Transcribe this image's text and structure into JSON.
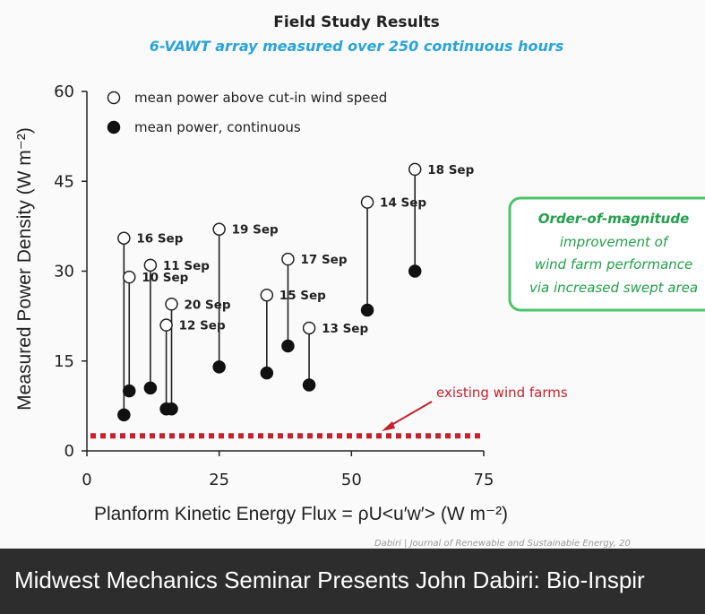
{
  "chart_data": {
    "type": "scatter",
    "title": "Field Study Results",
    "subtitle": "6-VAWT array measured over 250 continuous hours",
    "xlabel": "Planform Kinetic Energy Flux = ρU<u′w′> (W m⁻²)",
    "ylabel": "Measured Power Density (W m⁻²)",
    "xlim": [
      0,
      75
    ],
    "ylim": [
      0,
      60
    ],
    "xticks": [
      "0",
      "25",
      "50",
      "75"
    ],
    "yticks": [
      "0",
      "15",
      "30",
      "45",
      "60"
    ],
    "grid": false,
    "legend_position": "top-left",
    "series": [
      {
        "name": "mean power above cut-in wind speed",
        "marker": "open-circle"
      },
      {
        "name": "mean power, continuous",
        "marker": "filled-circle"
      }
    ],
    "points": [
      {
        "label": "16 Sep",
        "x": 7,
        "above_cut_in": 35.5,
        "continuous": 6
      },
      {
        "label": "10 Sep",
        "x": 8,
        "above_cut_in": 29,
        "continuous": 10
      },
      {
        "label": "11 Sep",
        "x": 12,
        "above_cut_in": 31,
        "continuous": 10.5
      },
      {
        "label": "20 Sep",
        "x": 16,
        "above_cut_in": 24.5,
        "continuous": 7
      },
      {
        "label": "12 Sep",
        "x": 15,
        "above_cut_in": 21,
        "continuous": 7
      },
      {
        "label": "19 Sep",
        "x": 25,
        "above_cut_in": 37,
        "continuous": 14
      },
      {
        "label": "15 Sep",
        "x": 34,
        "above_cut_in": 26,
        "continuous": 13
      },
      {
        "label": "17 Sep",
        "x": 38,
        "above_cut_in": 32,
        "continuous": 17.5
      },
      {
        "label": "13 Sep",
        "x": 42,
        "above_cut_in": 20.5,
        "continuous": 11
      },
      {
        "label": "14 Sep",
        "x": 53,
        "above_cut_in": 41.5,
        "continuous": 23.5
      },
      {
        "label": "18 Sep",
        "x": 62,
        "above_cut_in": 47,
        "continuous": 30
      }
    ],
    "reference_line": {
      "label": "existing wind farms",
      "y": 2.5,
      "x_range": [
        0,
        75
      ],
      "color": "#c8202c"
    },
    "callout": {
      "lines": [
        "Order-of-magnitude",
        "improvement of",
        "wind farm performance",
        "via increased swept area"
      ],
      "color": "#22a04a"
    },
    "citation": "Dabiri | Journal of Renewable and Sustainable Energy, 20"
  },
  "caption": {
    "text": "Midwest Mechanics Seminar Presents John Dabiri: Bio-Inspir"
  },
  "colors": {
    "subtitle": "#2aa3d9",
    "reference": "#c8202c",
    "callout": "#22a04a",
    "caption_bg": "#2d2d2d"
  }
}
